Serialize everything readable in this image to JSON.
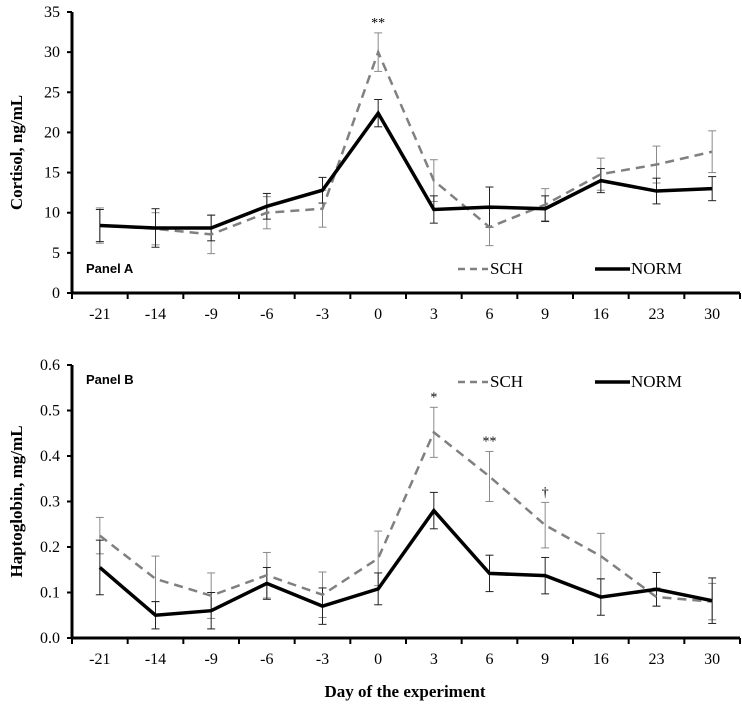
{
  "chart_data": [
    {
      "type": "line",
      "panel_label": "Panel A",
      "ylabel": "Cortisol, ng/mL",
      "xlabel": "",
      "ylim": [
        0,
        35
      ],
      "yticks": [
        "0",
        "5",
        "10",
        "15",
        "20",
        "25",
        "30",
        "35"
      ],
      "categories": [
        "-21",
        "-14",
        "-9",
        "-6",
        "-3",
        "0",
        "3",
        "6",
        "9",
        "16",
        "23",
        "30"
      ],
      "legend": {
        "position": "bottom-right",
        "entries": [
          "SCH",
          "NORM"
        ]
      },
      "series": [
        {
          "name": "SCH",
          "style": "dashed",
          "color": "#808080",
          "values": [
            8.4,
            8.0,
            7.3,
            10.0,
            10.5,
            30.0,
            14.0,
            8.2,
            11.0,
            14.8,
            16.0,
            17.6
          ],
          "errors": [
            2.2,
            2.0,
            2.4,
            2.0,
            2.3,
            2.4,
            2.6,
            2.3,
            2.0,
            2.0,
            2.3,
            2.6
          ]
        },
        {
          "name": "NORM",
          "style": "solid",
          "color": "#000000",
          "values": [
            8.4,
            8.1,
            8.1,
            10.8,
            12.8,
            22.4,
            10.4,
            10.7,
            10.5,
            14.0,
            12.7,
            13.0
          ],
          "errors": [
            2.0,
            2.4,
            1.6,
            1.6,
            1.6,
            1.7,
            1.7,
            2.5,
            1.6,
            1.5,
            1.6,
            1.5
          ]
        }
      ],
      "annotations": [
        {
          "category": "0",
          "text": "**"
        }
      ]
    },
    {
      "type": "line",
      "panel_label": "Panel B",
      "ylabel": "Haptoglobin, mg/mL",
      "xlabel": "Day of the experiment",
      "ylim": [
        0,
        0.6
      ],
      "yticks": [
        "0.0",
        "0.1",
        "0.2",
        "0.3",
        "0.4",
        "0.5",
        "0.6"
      ],
      "categories": [
        "-21",
        "-14",
        "-9",
        "-6",
        "-3",
        "0",
        "3",
        "6",
        "9",
        "16",
        "23",
        "30"
      ],
      "legend": {
        "position": "top-right",
        "entries": [
          "SCH",
          "NORM"
        ]
      },
      "series": [
        {
          "name": "SCH",
          "style": "dashed",
          "color": "#808080",
          "values": [
            0.225,
            0.13,
            0.093,
            0.138,
            0.095,
            0.175,
            0.452,
            0.355,
            0.248,
            0.18,
            0.09,
            0.08
          ],
          "errors": [
            0.04,
            0.05,
            0.05,
            0.05,
            0.05,
            0.06,
            0.055,
            0.055,
            0.05,
            0.05,
            0.02,
            0.04
          ]
        },
        {
          "name": "NORM",
          "style": "solid",
          "color": "#000000",
          "values": [
            0.155,
            0.05,
            0.06,
            0.12,
            0.07,
            0.108,
            0.28,
            0.142,
            0.137,
            0.09,
            0.107,
            0.082
          ],
          "errors": [
            0.06,
            0.03,
            0.04,
            0.035,
            0.04,
            0.035,
            0.04,
            0.04,
            0.04,
            0.04,
            0.037,
            0.05
          ]
        }
      ],
      "annotations": [
        {
          "category": "3",
          "text": "*"
        },
        {
          "category": "6",
          "text": "**"
        },
        {
          "category": "9",
          "text": "†"
        }
      ]
    }
  ]
}
